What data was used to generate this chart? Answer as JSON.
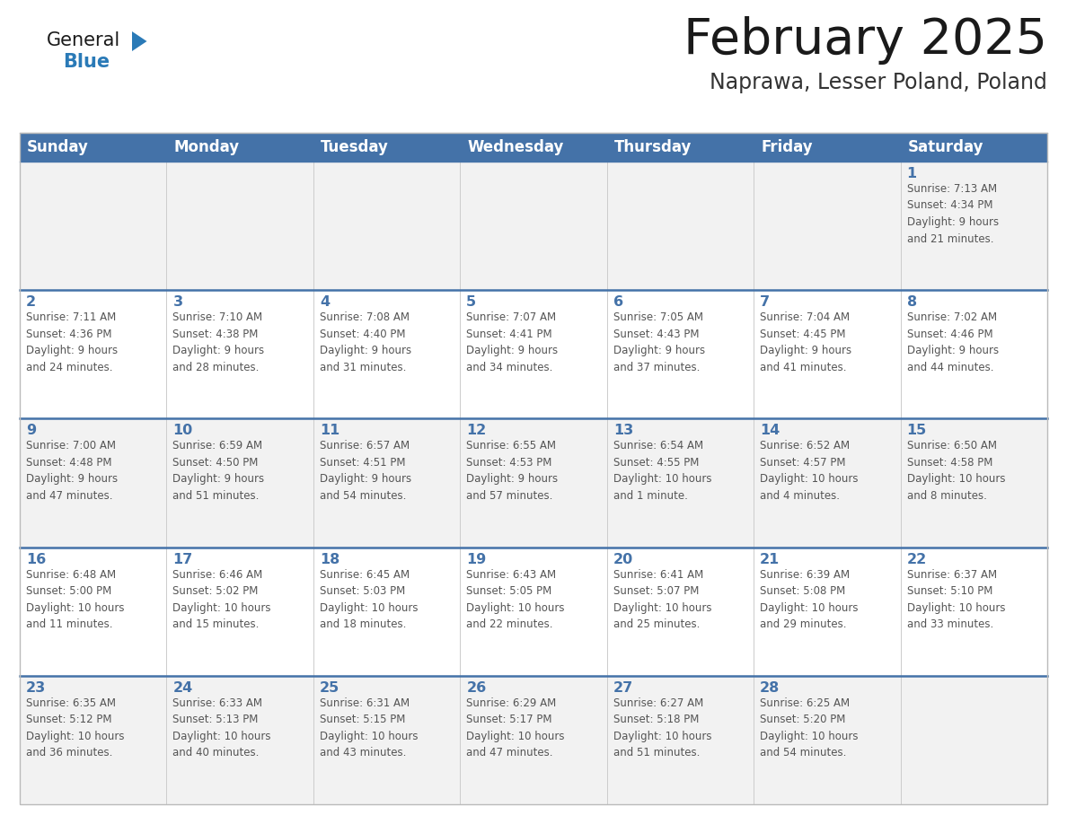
{
  "title": "February 2025",
  "subtitle": "Naprawa, Lesser Poland, Poland",
  "days_of_week": [
    "Sunday",
    "Monday",
    "Tuesday",
    "Wednesday",
    "Thursday",
    "Friday",
    "Saturday"
  ],
  "header_bg": "#4472A8",
  "header_text_color": "#FFFFFF",
  "cell_bg_light": "#F2F2F2",
  "cell_bg_white": "#FFFFFF",
  "cell_border_color": "#4472A8",
  "day_number_color": "#4472A8",
  "info_text_color": "#555555",
  "title_color": "#1a1a1a",
  "subtitle_color": "#333333",
  "logo_general_color": "#1a1a1a",
  "logo_blue_color": "#2A7AB7",
  "outer_border_color": "#BBBBBB",
  "week_rows": [
    {
      "days": [
        {
          "day": null,
          "info": ""
        },
        {
          "day": null,
          "info": ""
        },
        {
          "day": null,
          "info": ""
        },
        {
          "day": null,
          "info": ""
        },
        {
          "day": null,
          "info": ""
        },
        {
          "day": null,
          "info": ""
        },
        {
          "day": 1,
          "info": "Sunrise: 7:13 AM\nSunset: 4:34 PM\nDaylight: 9 hours\nand 21 minutes."
        }
      ]
    },
    {
      "days": [
        {
          "day": 2,
          "info": "Sunrise: 7:11 AM\nSunset: 4:36 PM\nDaylight: 9 hours\nand 24 minutes."
        },
        {
          "day": 3,
          "info": "Sunrise: 7:10 AM\nSunset: 4:38 PM\nDaylight: 9 hours\nand 28 minutes."
        },
        {
          "day": 4,
          "info": "Sunrise: 7:08 AM\nSunset: 4:40 PM\nDaylight: 9 hours\nand 31 minutes."
        },
        {
          "day": 5,
          "info": "Sunrise: 7:07 AM\nSunset: 4:41 PM\nDaylight: 9 hours\nand 34 minutes."
        },
        {
          "day": 6,
          "info": "Sunrise: 7:05 AM\nSunset: 4:43 PM\nDaylight: 9 hours\nand 37 minutes."
        },
        {
          "day": 7,
          "info": "Sunrise: 7:04 AM\nSunset: 4:45 PM\nDaylight: 9 hours\nand 41 minutes."
        },
        {
          "day": 8,
          "info": "Sunrise: 7:02 AM\nSunset: 4:46 PM\nDaylight: 9 hours\nand 44 minutes."
        }
      ]
    },
    {
      "days": [
        {
          "day": 9,
          "info": "Sunrise: 7:00 AM\nSunset: 4:48 PM\nDaylight: 9 hours\nand 47 minutes."
        },
        {
          "day": 10,
          "info": "Sunrise: 6:59 AM\nSunset: 4:50 PM\nDaylight: 9 hours\nand 51 minutes."
        },
        {
          "day": 11,
          "info": "Sunrise: 6:57 AM\nSunset: 4:51 PM\nDaylight: 9 hours\nand 54 minutes."
        },
        {
          "day": 12,
          "info": "Sunrise: 6:55 AM\nSunset: 4:53 PM\nDaylight: 9 hours\nand 57 minutes."
        },
        {
          "day": 13,
          "info": "Sunrise: 6:54 AM\nSunset: 4:55 PM\nDaylight: 10 hours\nand 1 minute."
        },
        {
          "day": 14,
          "info": "Sunrise: 6:52 AM\nSunset: 4:57 PM\nDaylight: 10 hours\nand 4 minutes."
        },
        {
          "day": 15,
          "info": "Sunrise: 6:50 AM\nSunset: 4:58 PM\nDaylight: 10 hours\nand 8 minutes."
        }
      ]
    },
    {
      "days": [
        {
          "day": 16,
          "info": "Sunrise: 6:48 AM\nSunset: 5:00 PM\nDaylight: 10 hours\nand 11 minutes."
        },
        {
          "day": 17,
          "info": "Sunrise: 6:46 AM\nSunset: 5:02 PM\nDaylight: 10 hours\nand 15 minutes."
        },
        {
          "day": 18,
          "info": "Sunrise: 6:45 AM\nSunset: 5:03 PM\nDaylight: 10 hours\nand 18 minutes."
        },
        {
          "day": 19,
          "info": "Sunrise: 6:43 AM\nSunset: 5:05 PM\nDaylight: 10 hours\nand 22 minutes."
        },
        {
          "day": 20,
          "info": "Sunrise: 6:41 AM\nSunset: 5:07 PM\nDaylight: 10 hours\nand 25 minutes."
        },
        {
          "day": 21,
          "info": "Sunrise: 6:39 AM\nSunset: 5:08 PM\nDaylight: 10 hours\nand 29 minutes."
        },
        {
          "day": 22,
          "info": "Sunrise: 6:37 AM\nSunset: 5:10 PM\nDaylight: 10 hours\nand 33 minutes."
        }
      ]
    },
    {
      "days": [
        {
          "day": 23,
          "info": "Sunrise: 6:35 AM\nSunset: 5:12 PM\nDaylight: 10 hours\nand 36 minutes."
        },
        {
          "day": 24,
          "info": "Sunrise: 6:33 AM\nSunset: 5:13 PM\nDaylight: 10 hours\nand 40 minutes."
        },
        {
          "day": 25,
          "info": "Sunrise: 6:31 AM\nSunset: 5:15 PM\nDaylight: 10 hours\nand 43 minutes."
        },
        {
          "day": 26,
          "info": "Sunrise: 6:29 AM\nSunset: 5:17 PM\nDaylight: 10 hours\nand 47 minutes."
        },
        {
          "day": 27,
          "info": "Sunrise: 6:27 AM\nSunset: 5:18 PM\nDaylight: 10 hours\nand 51 minutes."
        },
        {
          "day": 28,
          "info": "Sunrise: 6:25 AM\nSunset: 5:20 PM\nDaylight: 10 hours\nand 54 minutes."
        },
        {
          "day": null,
          "info": ""
        }
      ]
    }
  ]
}
